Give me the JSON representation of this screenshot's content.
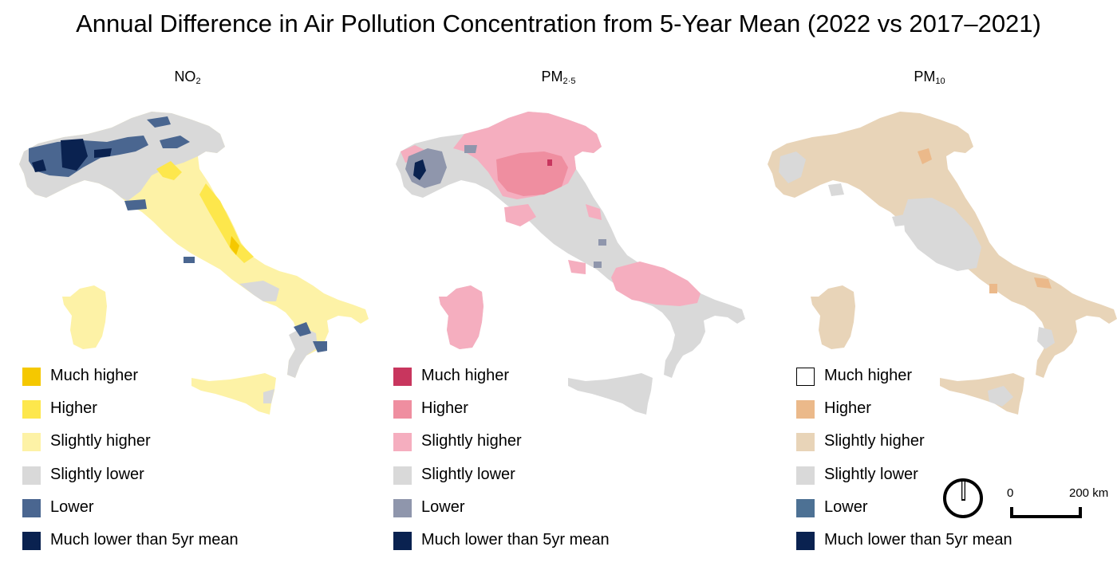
{
  "title": "Annual Difference in Air Pollution Concentration from 5-Year Mean (2022 vs 2017–2021)",
  "panels": [
    {
      "id": "no2",
      "label_main": "NO",
      "label_sub": "2",
      "colors": {
        "much_higher": "#f5c800",
        "higher": "#fde74c",
        "slightly_higher": "#fdf2a6",
        "slightly_lower": "#d9d9d9",
        "lower": "#4a6690",
        "much_lower": "#0a2250"
      },
      "legend": [
        {
          "label": "Much higher",
          "color": "#f5c800"
        },
        {
          "label": "Higher",
          "color": "#fde74c"
        },
        {
          "label": "Slightly higher",
          "color": "#fdf2a6"
        },
        {
          "label": "Slightly lower",
          "color": "#d9d9d9"
        },
        {
          "label": "Lower",
          "color": "#4a6690"
        },
        {
          "label": "Much lower than 5yr mean",
          "color": "#0a2250"
        }
      ]
    },
    {
      "id": "pm25",
      "label_main": "PM",
      "label_sub": "2·5",
      "colors": {
        "much_higher": "#c8365e",
        "higher": "#ef8ea0",
        "slightly_higher": "#f5aebf",
        "slightly_lower": "#d9d9d9",
        "lower": "#8f96ac",
        "much_lower": "#0a2250"
      },
      "legend": [
        {
          "label": "Much higher",
          "color": "#c8365e"
        },
        {
          "label": "Higher",
          "color": "#ef8ea0"
        },
        {
          "label": "Slightly higher",
          "color": "#f5aebf"
        },
        {
          "label": "Slightly lower",
          "color": "#d9d9d9"
        },
        {
          "label": "Lower",
          "color": "#8f96ac"
        },
        {
          "label": "Much lower than 5yr mean",
          "color": "#0a2250"
        }
      ]
    },
    {
      "id": "pm10",
      "label_main": "PM",
      "label_sub": "10",
      "colors": {
        "much_higher": "#ffffff",
        "higher": "#ebb98a",
        "slightly_higher": "#e8d4b8",
        "slightly_lower": "#d9d9d9",
        "lower": "#4d7194",
        "much_lower": "#0a2250"
      },
      "legend": [
        {
          "label": "Much higher",
          "color": "#ffffff"
        },
        {
          "label": "Higher",
          "color": "#ebb98a"
        },
        {
          "label": "Slightly higher",
          "color": "#e8d4b8"
        },
        {
          "label": "Slightly lower",
          "color": "#d9d9d9"
        },
        {
          "label": "Lower",
          "color": "#4d7194"
        },
        {
          "label": "Much lower than 5yr mean",
          "color": "#0a2250"
        }
      ]
    }
  ],
  "scale_bar": {
    "start": "0",
    "end": "200 km"
  },
  "north_arrow": {
    "icon": "north-arrow-icon"
  }
}
